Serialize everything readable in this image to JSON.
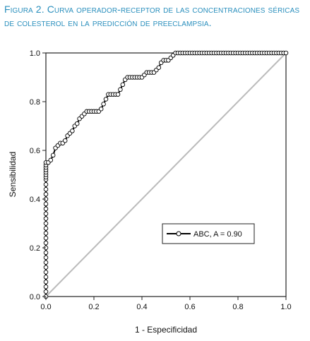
{
  "figure": {
    "caption_label": "Figura 2.",
    "caption_text": "Curva operador-receptor de las concentraciones séricas de colesterol en la predicción de preeclampsia."
  },
  "chart_data": {
    "type": "line",
    "xlabel": "1 - Especificidad",
    "ylabel": "Sensibilidad",
    "xlim": [
      0,
      1
    ],
    "ylim": [
      0,
      1
    ],
    "xticks": [
      "0.0",
      "0.2",
      "0.4",
      "0.6",
      "0.8",
      "1.0"
    ],
    "yticks": [
      "0.0",
      "0.2",
      "0.4",
      "0.6",
      "0.8",
      "1.0"
    ],
    "grid": false,
    "legend_position": "lower-right",
    "reference_line": {
      "x": [
        0,
        1
      ],
      "y": [
        0,
        1
      ],
      "color": "#bbbbbb"
    },
    "series": [
      {
        "name": "ABC, A = 0.90",
        "color": "#000000",
        "marker": "open-circle",
        "x": [
          0,
          0,
          0,
          0,
          0,
          0,
          0,
          0,
          0,
          0,
          0,
          0,
          0,
          0,
          0,
          0,
          0,
          0,
          0,
          0,
          0,
          0,
          0,
          0,
          0,
          0,
          0,
          0,
          0,
          0,
          0,
          0,
          0.01,
          0.02,
          0.03,
          0.04,
          0.05,
          0.06,
          0.07,
          0.08,
          0.09,
          0.1,
          0.11,
          0.12,
          0.13,
          0.14,
          0.15,
          0.16,
          0.17,
          0.18,
          0.19,
          0.2,
          0.21,
          0.22,
          0.23,
          0.24,
          0.25,
          0.26,
          0.27,
          0.28,
          0.29,
          0.3,
          0.31,
          0.32,
          0.33,
          0.34,
          0.35,
          0.36,
          0.37,
          0.38,
          0.39,
          0.4,
          0.41,
          0.42,
          0.43,
          0.44,
          0.45,
          0.46,
          0.47,
          0.48,
          0.49,
          0.5,
          0.51,
          0.52,
          0.53,
          0.54,
          0.55,
          0.56,
          0.57,
          0.58,
          0.59,
          0.6,
          0.61,
          0.62,
          0.63,
          0.64,
          0.65,
          0.66,
          0.67,
          0.68,
          0.69,
          0.7,
          0.71,
          0.72,
          0.73,
          0.74,
          0.75,
          0.76,
          0.77,
          0.78,
          0.79,
          0.8,
          0.81,
          0.82,
          0.83,
          0.84,
          0.85,
          0.86,
          0.87,
          0.88,
          0.89,
          0.9,
          0.91,
          0.92,
          0.93,
          0.94,
          0.95,
          0.96,
          0.97,
          0.98,
          0.99,
          1.0
        ],
        "y": [
          0,
          0.02,
          0.04,
          0.06,
          0.08,
          0.1,
          0.12,
          0.14,
          0.16,
          0.18,
          0.2,
          0.22,
          0.24,
          0.26,
          0.28,
          0.3,
          0.32,
          0.34,
          0.36,
          0.38,
          0.4,
          0.42,
          0.44,
          0.46,
          0.48,
          0.49,
          0.5,
          0.51,
          0.52,
          0.53,
          0.54,
          0.55,
          0.55,
          0.56,
          0.58,
          0.61,
          0.62,
          0.63,
          0.63,
          0.64,
          0.66,
          0.67,
          0.68,
          0.7,
          0.71,
          0.73,
          0.74,
          0.75,
          0.76,
          0.76,
          0.76,
          0.76,
          0.76,
          0.76,
          0.77,
          0.79,
          0.81,
          0.83,
          0.83,
          0.83,
          0.83,
          0.83,
          0.85,
          0.87,
          0.89,
          0.9,
          0.9,
          0.9,
          0.9,
          0.9,
          0.9,
          0.9,
          0.91,
          0.92,
          0.92,
          0.92,
          0.92,
          0.93,
          0.94,
          0.96,
          0.97,
          0.97,
          0.97,
          0.98,
          0.99,
          1,
          1,
          1,
          1,
          1,
          1,
          1,
          1,
          1,
          1,
          1,
          1,
          1,
          1,
          1,
          1,
          1,
          1,
          1,
          1,
          1,
          1,
          1,
          1,
          1,
          1,
          1,
          1,
          1,
          1,
          1,
          1,
          1,
          1,
          1,
          1,
          1,
          1,
          1,
          1,
          1,
          1,
          1,
          1,
          1,
          1,
          1
        ]
      }
    ]
  }
}
